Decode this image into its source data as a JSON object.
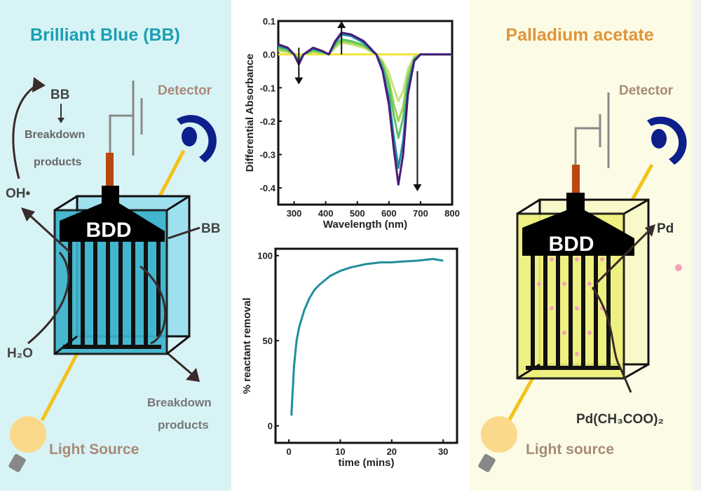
{
  "colors": {
    "left_bg": "#d8f3f5",
    "right_bg": "#fbfbe6",
    "left_title": "#1a9fb3",
    "right_title": "#e0953a",
    "detector_label": "#a88a78",
    "detector": "#0d1f8a",
    "electrode_stem": "#b8480f",
    "beam": "#f4c21a",
    "bb_cell": "#3bb3cc",
    "pd_cell": "#eef07a",
    "pd_particle": "#f2a4b4",
    "removal_curve": "#1f8e9b"
  },
  "left_panel": {
    "title": "Brilliant Blue (BB)",
    "detector_label": "Detector",
    "electrode_label": "BDD",
    "bb_top": "BB",
    "breakdown_1": "Breakdown",
    "breakdown_2": "products",
    "oh_radical": "OH•",
    "water": "H₂O",
    "bb_side": "BB",
    "breakdown_bottom_1": "Breakdown",
    "breakdown_bottom_2": "products",
    "light_label": "Light Source"
  },
  "right_panel": {
    "title": "Palladium acetate",
    "detector_label": "Detector",
    "electrode_label": "BDD",
    "pd_label": "Pd",
    "reactant_label": "Pd(CH₃COO)₂",
    "light_label": "Light source"
  },
  "chart_data": [
    {
      "type": "line",
      "xlabel": "Wavelength (nm)",
      "ylabel": "Differential Absorbance",
      "xlim": [
        250,
        800
      ],
      "ylim": [
        -0.45,
        0.1
      ],
      "xticks": [
        "300",
        "400",
        "500",
        "600",
        "700",
        "800"
      ],
      "yticks": [
        "0.1",
        "0.0",
        "-0.1",
        "-0.2",
        "-0.3",
        "-0.4"
      ],
      "grid": false,
      "x": [
        250,
        280,
        300,
        315,
        330,
        360,
        390,
        410,
        430,
        450,
        480,
        520,
        560,
        580,
        600,
        615,
        630,
        645,
        660,
        680,
        700,
        750,
        800
      ],
      "series": [
        {
          "color": "#f2e23a",
          "values": [
            0,
            0,
            0,
            0,
            0,
            0,
            0,
            0,
            0,
            0,
            0,
            0,
            0,
            0,
            0,
            0,
            0,
            0,
            0,
            0,
            0,
            0,
            0
          ]
        },
        {
          "color": "#c9e27a",
          "values": [
            0.01,
            0.007,
            0,
            -0.01,
            0,
            0.007,
            0.004,
            0,
            0.02,
            0.035,
            0.03,
            0.02,
            0,
            -0.02,
            -0.055,
            -0.1,
            -0.14,
            -0.11,
            -0.045,
            -0.007,
            0,
            0,
            0
          ]
        },
        {
          "color": "#9ed64a",
          "values": [
            0.015,
            0.01,
            0,
            -0.015,
            0,
            0.01,
            0.005,
            0,
            0.025,
            0.04,
            0.035,
            0.025,
            0,
            -0.026,
            -0.078,
            -0.146,
            -0.2,
            -0.156,
            -0.062,
            -0.01,
            0,
            0,
            0
          ]
        },
        {
          "color": "#5cc46a",
          "values": [
            0.02,
            0.013,
            0,
            -0.02,
            0,
            0.013,
            0.006,
            0,
            0.03,
            0.045,
            0.04,
            0.028,
            0,
            -0.032,
            -0.096,
            -0.18,
            -0.25,
            -0.19,
            -0.077,
            -0.013,
            0,
            0,
            0
          ]
        },
        {
          "color": "#1f8e9b",
          "values": [
            0.026,
            0.017,
            0,
            -0.026,
            0,
            0.017,
            0.009,
            0,
            0.035,
            0.06,
            0.055,
            0.035,
            0,
            -0.044,
            -0.13,
            -0.244,
            -0.34,
            -0.26,
            -0.1,
            -0.017,
            0,
            0,
            0
          ]
        },
        {
          "color": "#4a1a7a",
          "values": [
            0.03,
            0.02,
            0,
            -0.03,
            0,
            0.02,
            0.01,
            0,
            0.04,
            0.065,
            0.06,
            0.04,
            0,
            -0.05,
            -0.15,
            -0.28,
            -0.39,
            -0.3,
            -0.12,
            -0.02,
            0,
            0,
            0
          ]
        }
      ],
      "annotations": [
        {
          "type": "arrow-down",
          "x": 315,
          "from": 0.02,
          "to": -0.09
        },
        {
          "type": "arrow-up",
          "x": 450,
          "from": 0.0,
          "to": 0.1
        },
        {
          "type": "arrow-down",
          "x": 690,
          "from": -0.05,
          "to": -0.41
        }
      ]
    },
    {
      "type": "line",
      "xlabel": "time (mins)",
      "ylabel": "% reactant removal",
      "xlim": [
        -2.6,
        32.7
      ],
      "ylim": [
        -10,
        104
      ],
      "xticks": [
        "0",
        "10",
        "20",
        "30"
      ],
      "yticks": [
        "0",
        "50",
        "100"
      ],
      "grid": false,
      "series": [
        {
          "color": "#1f8e9b",
          "x": [
            0.5,
            1,
            1.5,
            2,
            3,
            4,
            5,
            6,
            8,
            10,
            12,
            15,
            18,
            20,
            22,
            25,
            28,
            30
          ],
          "values": [
            6,
            35,
            50,
            58,
            68,
            75,
            80,
            83,
            88,
            91,
            93,
            95,
            96,
            96,
            96.5,
            97,
            98,
            97
          ]
        }
      ]
    }
  ]
}
